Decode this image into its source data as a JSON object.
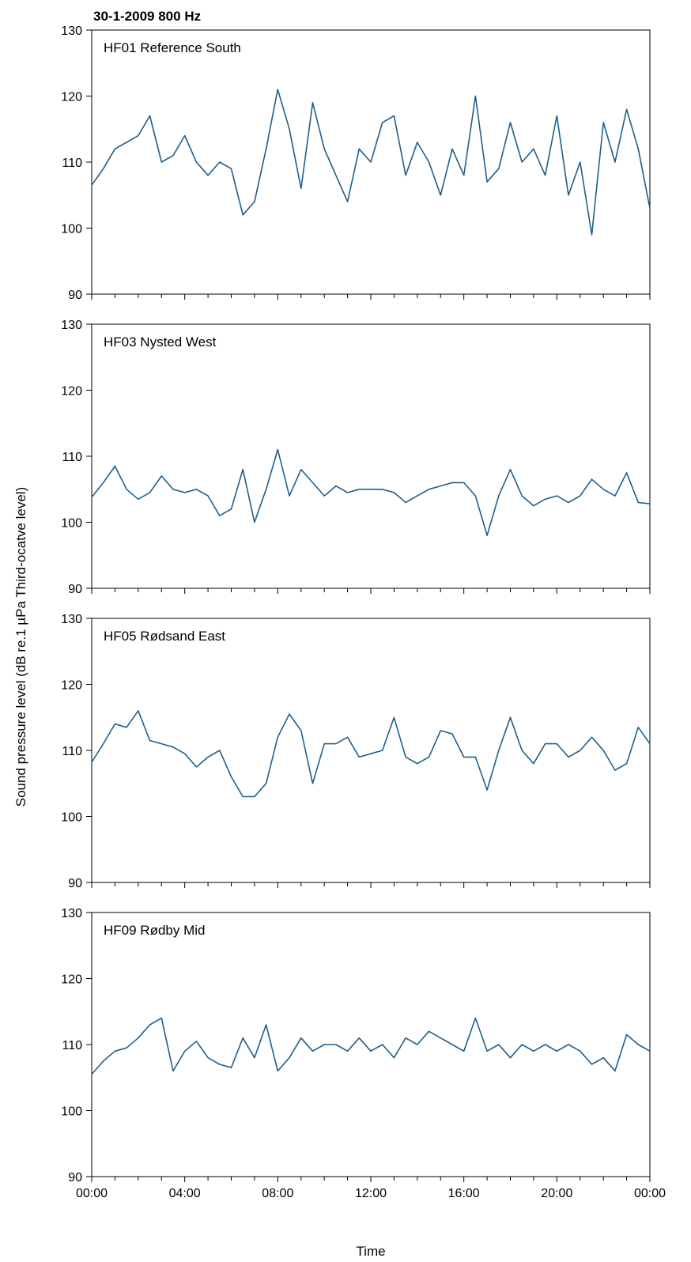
{
  "chart_data": {
    "type": "line",
    "title": "30-1-2009 800 Hz",
    "xlabel": "Time",
    "ylabel": "Sound pressure level (dB re.1 µPa Third-ocatve level)",
    "x_ticks": [
      "00:00",
      "04:00",
      "08:00",
      "12:00",
      "16:00",
      "20:00",
      "00:00"
    ],
    "xlim_hours": [
      0,
      24
    ],
    "minor_tick_hours": 1,
    "ylim": [
      90,
      130
    ],
    "y_ticks": [
      90,
      100,
      110,
      120,
      130
    ],
    "grid": false,
    "line_color": "#1f5f8b",
    "x_hours": [
      0,
      0.5,
      1,
      1.5,
      2,
      2.5,
      3,
      3.5,
      4,
      4.5,
      5,
      5.5,
      6,
      6.5,
      7,
      7.5,
      8,
      8.5,
      9,
      9.5,
      10,
      10.5,
      11,
      11.5,
      12,
      12.5,
      13,
      13.5,
      14,
      14.5,
      15,
      15.5,
      16,
      16.5,
      17,
      17.5,
      18,
      18.5,
      19,
      19.5,
      20,
      20.5,
      21,
      21.5,
      22,
      22.5,
      23,
      23.5,
      24
    ],
    "panels": [
      {
        "name": "HF01 Reference South",
        "values": [
          106.5,
          109,
          112,
          113,
          114,
          117,
          110,
          111,
          114,
          110,
          108,
          110,
          109,
          102,
          104,
          112,
          121,
          115,
          106,
          119,
          112,
          108,
          104,
          112,
          110,
          116,
          117,
          108,
          113,
          110,
          105,
          112,
          108,
          120,
          107,
          109,
          116,
          110,
          112,
          108,
          117,
          105,
          110,
          99,
          116,
          110,
          118,
          112,
          103
        ]
      },
      {
        "name": "HF03 Nysted West",
        "values": [
          103.8,
          106,
          108.5,
          105,
          103.5,
          104.5,
          107,
          105,
          104.5,
          105,
          104,
          101,
          102,
          108,
          100,
          105,
          111,
          104,
          108,
          106,
          104,
          105.5,
          104.5,
          105,
          105,
          105,
          104.5,
          103,
          104,
          105,
          105.5,
          106,
          106,
          104,
          98,
          104,
          108,
          104,
          102.5,
          103.5,
          104,
          103,
          104,
          106.5,
          105,
          104,
          107.5,
          103,
          102.8
        ]
      },
      {
        "name": "HF05 Rødsand East",
        "values": [
          108.2,
          111,
          114,
          113.5,
          116,
          111.5,
          111,
          110.5,
          109.5,
          107.5,
          109,
          110,
          106,
          103,
          103,
          105,
          112,
          115.5,
          113,
          105,
          111,
          111,
          112,
          109,
          109.5,
          110,
          115,
          109,
          108,
          109,
          113,
          112.5,
          109,
          109,
          104,
          110,
          115,
          110,
          108,
          111,
          111,
          109,
          110,
          112,
          110,
          107,
          108,
          113.5,
          111
        ]
      },
      {
        "name": "HF09 Rødby Mid",
        "values": [
          105.5,
          107.5,
          109,
          109.5,
          111,
          113,
          114,
          106,
          109,
          110.5,
          108,
          107,
          106.5,
          111,
          108,
          113,
          106,
          108,
          111,
          109,
          110,
          110,
          109,
          111,
          109,
          110,
          108,
          111,
          110,
          112,
          111,
          110,
          109,
          114,
          109,
          110,
          108,
          110,
          109,
          110,
          109,
          110,
          109,
          107,
          108,
          106,
          111.5,
          110,
          109
        ]
      }
    ]
  }
}
